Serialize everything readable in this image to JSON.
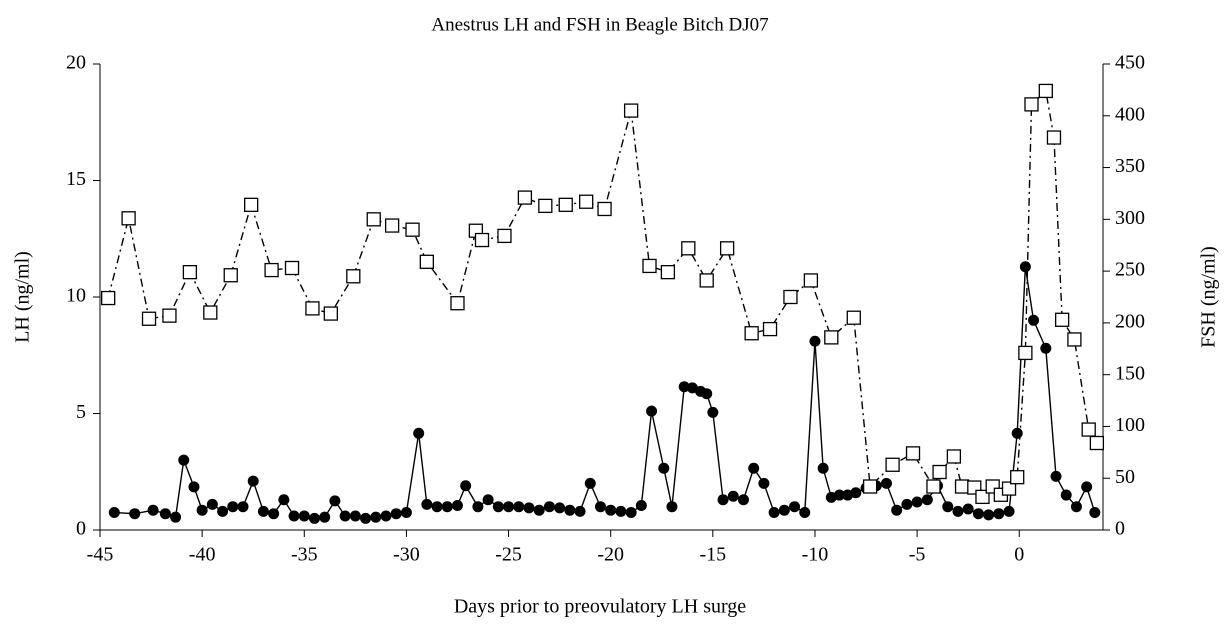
{
  "chart_data": {
    "type": "line",
    "title": "Anestrus LH and FSH in Beagle Bitch DJ07",
    "xlabel": "Days prior to preovulatory LH surge",
    "ylabel": "LH (ng/ml)",
    "y2label": "FSH (ng/ml)",
    "xlim": [
      -45,
      4.1
    ],
    "xticks": [
      -45,
      -40,
      -35,
      -30,
      -25,
      -20,
      -15,
      -10,
      -5,
      0
    ],
    "ylim": [
      0,
      20
    ],
    "yticks": [
      0,
      5,
      10,
      15,
      20
    ],
    "y2lim": [
      0,
      450
    ],
    "y2ticks": [
      0,
      50,
      100,
      150,
      200,
      250,
      300,
      350,
      400,
      450
    ],
    "series": [
      {
        "color": "#000000",
        "marker": "filled-circle",
        "line_style": "solid",
        "axis": "y",
        "x": [
          -44.3,
          -43.3,
          -42.4,
          -41.8,
          -41.3,
          -40.9,
          -40.4,
          -40,
          -39.5,
          -39,
          -38.5,
          -38,
          -37.5,
          -37,
          -36.5,
          -36,
          -35.5,
          -35,
          -34.5,
          -34,
          -33.5,
          -33,
          -32.5,
          -32,
          -31.5,
          -31,
          -30.5,
          -30,
          -29.4,
          -29,
          -28.5,
          -28,
          -27.5,
          -27.1,
          -26.5,
          -26,
          -25.5,
          -25,
          -24.5,
          -24,
          -23.5,
          -23,
          -22.5,
          -22,
          -21.5,
          -21,
          -20.5,
          -20,
          -19.5,
          -19,
          -18.5,
          -18,
          -17.4,
          -17,
          -16.4,
          -16,
          -15.6,
          -15.3,
          -15,
          -14.5,
          -14,
          -13.5,
          -13,
          -12.5,
          -12,
          -11.5,
          -11,
          -10.5,
          -10,
          -9.6,
          -9.2,
          -8.8,
          -8.4,
          -8,
          -7.5,
          -7,
          -6.5,
          -6,
          -5.5,
          -5,
          -4.5,
          -4,
          -3.5,
          -3,
          -2.5,
          -2,
          -1.5,
          -1,
          -0.5,
          -0.1,
          0.3,
          0.7,
          1.3,
          1.8,
          2.3,
          2.8,
          3.3,
          3.7
        ],
        "values": [
          0.75,
          0.7,
          0.85,
          0.7,
          0.55,
          3.0,
          1.85,
          0.85,
          1.1,
          0.8,
          1.0,
          1.0,
          2.1,
          0.8,
          0.7,
          1.3,
          0.6,
          0.6,
          0.5,
          0.55,
          1.25,
          0.6,
          0.6,
          0.5,
          0.55,
          0.6,
          0.7,
          0.75,
          4.15,
          1.1,
          1.0,
          1.0,
          1.05,
          1.9,
          1.0,
          1.3,
          1.0,
          1.0,
          1.0,
          0.95,
          0.85,
          1.0,
          0.95,
          0.85,
          0.8,
          2.0,
          1.0,
          0.85,
          0.8,
          0.75,
          1.05,
          5.1,
          2.65,
          1.0,
          6.15,
          6.1,
          5.95,
          5.85,
          5.05,
          1.3,
          1.45,
          1.3,
          2.65,
          2.0,
          0.75,
          0.85,
          1.0,
          0.75,
          8.1,
          2.65,
          1.4,
          1.5,
          1.5,
          1.6,
          1.8,
          1.9,
          2.0,
          0.85,
          1.1,
          1.2,
          1.3,
          1.9,
          1.0,
          0.8,
          0.9,
          0.7,
          0.65,
          0.7,
          0.8,
          4.15,
          11.3,
          9.0,
          7.8,
          2.3,
          1.5,
          1.0,
          1.85,
          0.75
        ]
      },
      {
        "color": "#000000",
        "marker": "open-square",
        "line_style": "dashdot",
        "axis": "y2",
        "x": [
          -44.6,
          -43.6,
          -42.6,
          -41.6,
          -40.6,
          -39.6,
          -38.6,
          -37.6,
          -36.6,
          -35.6,
          -34.6,
          -33.7,
          -32.6,
          -31.6,
          -30.7,
          -29.7,
          -29,
          -27.5,
          -26.6,
          -26.3,
          -25.2,
          -24.2,
          -23.2,
          -22.2,
          -21.2,
          -20.3,
          -19,
          -18.1,
          -17.2,
          -16.2,
          -15.3,
          -14.3,
          -13.1,
          -12.2,
          -11.2,
          -10.2,
          -9.2,
          -8.1,
          -7.3,
          -6.2,
          -5.2,
          -4.2,
          -3.9,
          -3.2,
          -2.8,
          -2.2,
          -1.8,
          -1.3,
          -0.9,
          -0.5,
          -0.1,
          0.3,
          0.6,
          1.3,
          1.7,
          2.1,
          2.7,
          3.4,
          3.8
        ],
        "values": [
          224,
          301,
          204,
          207,
          249,
          210,
          246,
          314,
          251,
          253,
          214,
          209,
          245,
          300,
          294,
          290,
          259,
          219,
          289,
          280,
          284,
          321,
          313,
          314,
          317,
          310,
          405,
          255,
          249,
          272,
          241,
          272,
          190,
          194,
          225,
          241,
          186,
          205,
          42,
          63,
          74,
          42,
          56,
          71,
          42,
          41,
          32,
          42,
          34,
          40,
          51,
          171,
          411,
          424,
          379,
          203,
          184,
          97,
          84
        ]
      }
    ]
  }
}
